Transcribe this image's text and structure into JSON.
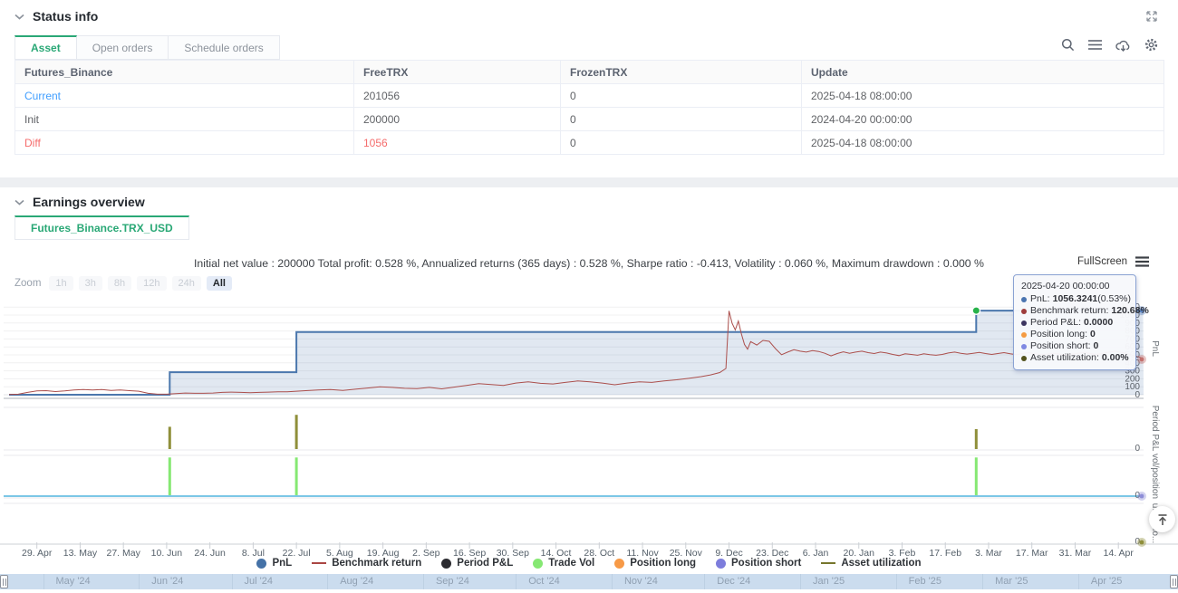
{
  "colors": {
    "accent_green": "#2aa876",
    "link_blue": "#409eff",
    "alert_red": "#f56c6c",
    "pnl_blue": "#4b77ad",
    "benchmark_red": "#ab4f4c",
    "trade_vol_green": "#86e873",
    "period_pnl_olive": "#8f8f3a",
    "position_short_cyan": "#7cc7e6",
    "grid": "#f0f0f1"
  },
  "status": {
    "title": "Status info",
    "expand_icon": "expand-icon",
    "tabs": [
      {
        "label": "Asset",
        "active": true
      },
      {
        "label": "Open orders",
        "active": false
      },
      {
        "label": "Schedule orders",
        "active": false
      }
    ],
    "toolbar_icons": [
      "search-icon",
      "menu-icon",
      "cloud-download-icon",
      "settings-icon"
    ],
    "table": {
      "columns": [
        "Futures_Binance",
        "FreeTRX",
        "FrozenTRX",
        "Update"
      ],
      "rows": [
        {
          "cells": [
            "Current",
            "201056",
            "0",
            "2025-04-18 08:00:00"
          ],
          "colors": [
            "#409eff",
            "#606266",
            "#606266",
            "#606266"
          ]
        },
        {
          "cells": [
            "Init",
            "200000",
            "0",
            "2024-04-20 00:00:00"
          ],
          "colors": [
            "#606266",
            "#606266",
            "#606266",
            "#606266"
          ]
        },
        {
          "cells": [
            "Diff",
            "1056",
            "0",
            "2025-04-18 08:00:00"
          ],
          "colors": [
            "#f56c6c",
            "#f56c6c",
            "#606266",
            "#606266"
          ]
        }
      ]
    }
  },
  "earnings": {
    "title": "Earnings overview",
    "tab": "Futures_Binance.TRX_USD",
    "summary": "Initial net value : 200000 Total profit: 0.528 %, Annualized returns (365 days) : 0.528 %, Sharpe ratio : -0.413, Volatility : 0.060 %, Maximum drawdown : 0.000 %",
    "fullscreen_label": "FullScreen",
    "zoom": {
      "label": "Zoom",
      "buttons": [
        "1h",
        "3h",
        "8h",
        "12h",
        "24h",
        "All"
      ],
      "active": "All"
    }
  },
  "tooltip": {
    "title": "2025-04-20 00:00:00",
    "rows": [
      {
        "color": "#4a74b0",
        "label": "PnL:",
        "value": "1056.3241",
        "suffix": " (0.53%)"
      },
      {
        "color": "#9e3c3c",
        "label": "Benchmark return:",
        "value": "120.68%",
        "suffix": ""
      },
      {
        "color": "#3d3660",
        "label": "Period P&L:",
        "value": "0.0000",
        "suffix": ""
      },
      {
        "color": "#f59b42",
        "label": "Position long:",
        "value": "0",
        "suffix": ""
      },
      {
        "color": "#8089e2",
        "label": "Position short:",
        "value": "0",
        "suffix": ""
      },
      {
        "color": "#52521d",
        "label": "Asset utilization:",
        "value": "0.00%",
        "suffix": ""
      }
    ]
  },
  "legend": [
    {
      "label": "PnL",
      "marker": "dot",
      "color": "#4572a7"
    },
    {
      "label": "Benchmark return",
      "marker": "dash",
      "color": "#aa4643"
    },
    {
      "label": "Period P&L",
      "marker": "dot",
      "color": "#2b2b30"
    },
    {
      "label": "Trade Vol",
      "marker": "dot",
      "color": "#86e873"
    },
    {
      "label": "Position long",
      "marker": "dot",
      "color": "#f79a47"
    },
    {
      "label": "Position short",
      "marker": "dot",
      "color": "#7d7ddc"
    },
    {
      "label": "Asset utilization",
      "marker": "dash",
      "color": "#76762c"
    }
  ],
  "chart_data": {
    "type": "line",
    "title": "",
    "x_axis": {
      "unit": "days since 2024-04-20",
      "range": [
        0,
        367
      ],
      "ticks": [
        {
          "day": 9,
          "label": "29. Apr"
        },
        {
          "day": 23,
          "label": "13. May"
        },
        {
          "day": 37,
          "label": "27. May"
        },
        {
          "day": 51,
          "label": "10. Jun"
        },
        {
          "day": 65,
          "label": "24. Jun"
        },
        {
          "day": 79,
          "label": "8. Jul"
        },
        {
          "day": 93,
          "label": "22. Jul"
        },
        {
          "day": 107,
          "label": "5. Aug"
        },
        {
          "day": 121,
          "label": "19. Aug"
        },
        {
          "day": 135,
          "label": "2. Sep"
        },
        {
          "day": 149,
          "label": "16. Sep"
        },
        {
          "day": 163,
          "label": "30. Sep"
        },
        {
          "day": 177,
          "label": "14. Oct"
        },
        {
          "day": 191,
          "label": "28. Oct"
        },
        {
          "day": 205,
          "label": "11. Nov"
        },
        {
          "day": 219,
          "label": "25. Nov"
        },
        {
          "day": 233,
          "label": "9. Dec"
        },
        {
          "day": 247,
          "label": "23. Dec"
        },
        {
          "day": 261,
          "label": "6. Jan"
        },
        {
          "day": 275,
          "label": "20. Jan"
        },
        {
          "day": 289,
          "label": "3. Feb"
        },
        {
          "day": 303,
          "label": "17. Feb"
        },
        {
          "day": 317,
          "label": "3. Mar"
        },
        {
          "day": 331,
          "label": "17. Mar"
        },
        {
          "day": 345,
          "label": "31. Mar"
        },
        {
          "day": 359,
          "label": "14. Apr"
        }
      ]
    },
    "panels": [
      {
        "name": "PnL",
        "ylim": [
          0,
          1250
        ],
        "yticks": [
          0,
          100,
          200,
          300,
          400,
          500,
          600,
          700,
          800,
          900,
          1000,
          1100
        ]
      },
      {
        "name": "Period P&L",
        "ylim": [
          0,
          1
        ],
        "yticks": [
          0
        ]
      },
      {
        "name": "vol/position",
        "ylim": [
          0,
          1
        ],
        "yticks": [
          0
        ]
      },
      {
        "name": "utilizatio...",
        "ylim": [
          0,
          1
        ],
        "yticks": [
          0
        ]
      }
    ],
    "series": [
      {
        "name": "PnL",
        "type": "area-step",
        "panel": 0,
        "color": "#4b77ad",
        "points": [
          [
            0,
            0
          ],
          [
            52,
            0
          ],
          [
            52,
            283
          ],
          [
            93,
            283
          ],
          [
            93,
            788
          ],
          [
            313,
            788
          ],
          [
            313,
            1056
          ],
          [
            367,
            1056
          ]
        ]
      },
      {
        "name": "Benchmark return",
        "type": "line",
        "panel": 0,
        "color": "#ab4f4c",
        "y_unit": "percent",
        "hidden_axis_ylim": [
          0,
          300
        ],
        "final_value_pct": 120.68,
        "points": [
          [
            0,
            1
          ],
          [
            3,
            2
          ],
          [
            6,
            8
          ],
          [
            9,
            13
          ],
          [
            12,
            14
          ],
          [
            15,
            11
          ],
          [
            18,
            13
          ],
          [
            21,
            16
          ],
          [
            24,
            18
          ],
          [
            27,
            16
          ],
          [
            30,
            18
          ],
          [
            33,
            15
          ],
          [
            36,
            16
          ],
          [
            39,
            14
          ],
          [
            42,
            12
          ],
          [
            45,
            5
          ],
          [
            48,
            2
          ],
          [
            51,
            2
          ],
          [
            54,
            4
          ],
          [
            57,
            6
          ],
          [
            60,
            5
          ],
          [
            63,
            5
          ],
          [
            66,
            6
          ],
          [
            69,
            8
          ],
          [
            72,
            9
          ],
          [
            75,
            8
          ],
          [
            78,
            7
          ],
          [
            81,
            8
          ],
          [
            84,
            9
          ],
          [
            87,
            10
          ],
          [
            90,
            10
          ],
          [
            93,
            12
          ],
          [
            96,
            14
          ],
          [
            100,
            16
          ],
          [
            104,
            18
          ],
          [
            108,
            15
          ],
          [
            112,
            19
          ],
          [
            116,
            23
          ],
          [
            120,
            27
          ],
          [
            124,
            25
          ],
          [
            128,
            22
          ],
          [
            132,
            21
          ],
          [
            136,
            25
          ],
          [
            140,
            20
          ],
          [
            144,
            26
          ],
          [
            148,
            32
          ],
          [
            152,
            38
          ],
          [
            156,
            35
          ],
          [
            160,
            32
          ],
          [
            164,
            40
          ],
          [
            168,
            44
          ],
          [
            172,
            39
          ],
          [
            176,
            37
          ],
          [
            180,
            42
          ],
          [
            184,
            47
          ],
          [
            188,
            44
          ],
          [
            192,
            40
          ],
          [
            196,
            34
          ],
          [
            200,
            40
          ],
          [
            204,
            44
          ],
          [
            208,
            42
          ],
          [
            212,
            47
          ],
          [
            216,
            51
          ],
          [
            220,
            56
          ],
          [
            224,
            62
          ],
          [
            227,
            68
          ],
          [
            230,
            76
          ],
          [
            232,
            90
          ],
          [
            233,
            287
          ],
          [
            234,
            245
          ],
          [
            235,
            222
          ],
          [
            236,
            252
          ],
          [
            237,
            208
          ],
          [
            238,
            172
          ],
          [
            239,
            156
          ],
          [
            240,
            182
          ],
          [
            242,
            170
          ],
          [
            244,
            186
          ],
          [
            246,
            183
          ],
          [
            248,
            158
          ],
          [
            250,
            137
          ],
          [
            252,
            146
          ],
          [
            254,
            154
          ],
          [
            256,
            149
          ],
          [
            258,
            146
          ],
          [
            260,
            151
          ],
          [
            262,
            148
          ],
          [
            264,
            142
          ],
          [
            266,
            133
          ],
          [
            268,
            141
          ],
          [
            270,
            147
          ],
          [
            272,
            142
          ],
          [
            274,
            146
          ],
          [
            276,
            149
          ],
          [
            278,
            144
          ],
          [
            280,
            141
          ],
          [
            282,
            146
          ],
          [
            284,
            143
          ],
          [
            286,
            138
          ],
          [
            288,
            134
          ],
          [
            290,
            140
          ],
          [
            292,
            138
          ],
          [
            294,
            135
          ],
          [
            296,
            140
          ],
          [
            298,
            137
          ],
          [
            300,
            135
          ],
          [
            302,
            138
          ],
          [
            304,
            143
          ],
          [
            306,
            146
          ],
          [
            308,
            142
          ],
          [
            310,
            139
          ],
          [
            312,
            142
          ],
          [
            314,
            145
          ],
          [
            316,
            141
          ],
          [
            318,
            138
          ],
          [
            320,
            141
          ],
          [
            322,
            144
          ],
          [
            324,
            140
          ],
          [
            326,
            137
          ],
          [
            328,
            141
          ],
          [
            330,
            144
          ],
          [
            332,
            140
          ],
          [
            334,
            137
          ],
          [
            336,
            139
          ],
          [
            338,
            142
          ],
          [
            340,
            139
          ],
          [
            342,
            136
          ],
          [
            344,
            139
          ],
          [
            346,
            142
          ],
          [
            348,
            145
          ],
          [
            350,
            141
          ],
          [
            352,
            138
          ],
          [
            354,
            142
          ],
          [
            356,
            146
          ],
          [
            358,
            149
          ],
          [
            360,
            145
          ],
          [
            362,
            141
          ],
          [
            364,
            134
          ],
          [
            366,
            128
          ],
          [
            367,
            121
          ]
        ]
      },
      {
        "name": "Period P&L",
        "type": "bars",
        "panel": 1,
        "color": "#8f8f3a",
        "points": [
          [
            52,
            0.56
          ],
          [
            93,
            0.86
          ],
          [
            313,
            0.5
          ]
        ]
      },
      {
        "name": "Trade Vol",
        "type": "bars",
        "panel": 2,
        "color": "#86e873",
        "points": [
          [
            52,
            0.95
          ],
          [
            93,
            0.95
          ],
          [
            313,
            0.95
          ]
        ]
      },
      {
        "name": "Position short",
        "type": "line",
        "panel": 2,
        "color": "#7cc7e6",
        "points": [
          [
            0,
            0
          ],
          [
            367,
            0
          ]
        ]
      },
      {
        "name": "Asset utilization",
        "type": "line",
        "panel": 3,
        "color": "#8f8f3a",
        "points": [
          [
            0,
            0
          ],
          [
            367,
            0
          ]
        ]
      }
    ],
    "point_markers": [
      {
        "name": "hover-point",
        "panel": 0,
        "day": 313,
        "value": 1056,
        "color": "#27b24a"
      },
      {
        "name": "pnl-edge-dot",
        "panel": 0,
        "value": 1056,
        "color": "#5b83c0"
      },
      {
        "name": "benchmark-edge-dot",
        "panel": 0,
        "value_pct": 121,
        "color": "#c4716e"
      },
      {
        "name": "position-short-edge-dot",
        "panel": 2,
        "value": 0,
        "color": "#8e8ed8"
      },
      {
        "name": "asset-util-edge-dot",
        "panel": 3,
        "value": 0,
        "color": "#8f8f3a"
      }
    ]
  },
  "navigator": {
    "months": [
      {
        "label": "May '24",
        "day": 11
      },
      {
        "label": "Jun '24",
        "day": 42
      },
      {
        "label": "Jul '24",
        "day": 72
      },
      {
        "label": "Aug '24",
        "day": 103
      },
      {
        "label": "Sep '24",
        "day": 134
      },
      {
        "label": "Oct '24",
        "day": 164
      },
      {
        "label": "Nov '24",
        "day": 195
      },
      {
        "label": "Dec '24",
        "day": 225
      },
      {
        "label": "Jan '25",
        "day": 256
      },
      {
        "label": "Feb '25",
        "day": 287
      },
      {
        "label": "Mar '25",
        "day": 315
      },
      {
        "label": "Apr '25",
        "day": 346
      }
    ]
  }
}
